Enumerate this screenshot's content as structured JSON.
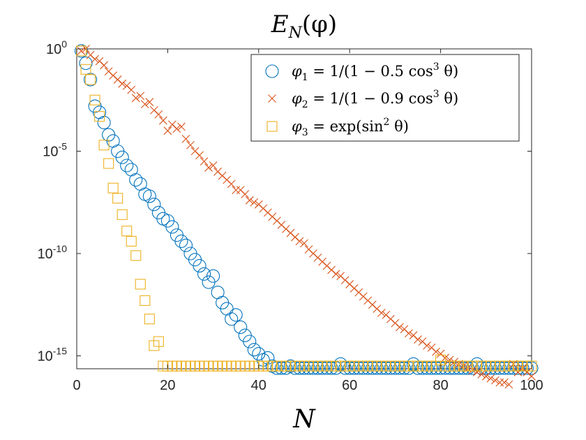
{
  "chart_data": {
    "type": "scatter",
    "title": "E_N(φ)",
    "title_main": "E",
    "title_sub": "N",
    "title_arg": "(φ)",
    "xlabel": "N",
    "ylabel": "",
    "xlim": [
      0,
      100
    ],
    "y_scale": "log",
    "ylim_exp": [
      -16,
      0
    ],
    "xticks": [
      0,
      20,
      40,
      60,
      80,
      100
    ],
    "xtick_labels": [
      "0",
      "20",
      "40",
      "60",
      "80",
      "100"
    ],
    "yticks_exp": [
      0,
      -5,
      -10,
      -15
    ],
    "ytick_base": "10",
    "ytick_exps": [
      "0",
      "-5",
      "-10",
      "-15"
    ],
    "legend_position": "top-right",
    "series": [
      {
        "name": "φ1 = 1/(1 − 0.5 cos³ θ)",
        "legend": {
          "sym": "φ",
          "sub": "1",
          "pre": " = 1/(1 − 0.5 cos",
          "sup": "3",
          "post": " θ)"
        },
        "marker": "circle",
        "color": "#0072BD",
        "x": [
          1,
          2,
          3,
          4,
          5,
          6,
          7,
          8,
          9,
          10,
          11,
          12,
          13,
          14,
          15,
          16,
          17,
          18,
          19,
          20,
          21,
          22,
          23,
          24,
          25,
          26,
          27,
          28,
          29,
          30,
          31,
          32,
          33,
          34,
          35,
          36,
          37,
          38,
          39,
          40,
          41,
          42,
          43,
          44,
          45,
          46,
          47,
          48,
          49,
          50,
          51,
          52,
          53,
          54,
          55,
          56,
          57,
          58,
          59,
          60,
          61,
          62,
          63,
          64,
          65,
          66,
          67,
          68,
          69,
          70,
          71,
          72,
          73,
          74,
          75,
          76,
          77,
          78,
          79,
          80,
          81,
          82,
          83,
          84,
          85,
          86,
          87,
          88,
          89,
          90,
          91,
          92,
          93,
          94,
          95,
          96,
          97,
          98,
          99,
          100
        ],
        "log10_y": [
          -0.1,
          -0.7,
          -1.5,
          -2.8,
          -3.1,
          -3.6,
          -4.2,
          -4.5,
          -5.0,
          -5.3,
          -5.7,
          -5.9,
          -6.4,
          -6.6,
          -7.1,
          -7.2,
          -7.6,
          -8.0,
          -8.3,
          -8.4,
          -8.7,
          -9.1,
          -9.4,
          -9.6,
          -10.0,
          -10.3,
          -10.6,
          -11.0,
          -11.4,
          -11.1,
          -11.9,
          -12.4,
          -12.7,
          -13.2,
          -13.0,
          -13.6,
          -14.0,
          -14.3,
          -14.7,
          -14.9,
          -15.2,
          -15.1,
          -15.5,
          -15.6,
          -15.6,
          -15.6,
          -15.5,
          -15.6,
          -15.6,
          -15.6,
          -15.6,
          -15.6,
          -15.6,
          -15.6,
          -15.6,
          -15.6,
          -15.6,
          -15.4,
          -15.6,
          -15.6,
          -15.6,
          -15.6,
          -15.6,
          -15.6,
          -15.6,
          -15.6,
          -15.6,
          -15.6,
          -15.6,
          -15.6,
          -15.6,
          -15.6,
          -15.6,
          -15.4,
          -15.6,
          -15.6,
          -15.6,
          -15.6,
          -15.6,
          -15.6,
          -15.6,
          -15.6,
          -15.6,
          -15.6,
          -15.6,
          -15.6,
          -15.6,
          -15.4,
          -15.6,
          -15.6,
          -15.6,
          -15.6,
          -15.6,
          -15.6,
          -15.6,
          -15.6,
          -15.6,
          -15.6,
          -15.6,
          -15.6
        ]
      },
      {
        "name": "φ2 = 1/(1 − 0.9 cos³ θ)",
        "legend": {
          "sym": "φ",
          "sub": "2",
          "pre": " = 1/(1 − 0.9 cos",
          "sup": "3",
          "post": " θ)"
        },
        "marker": "x",
        "color": "#D95319",
        "x": [
          1,
          2,
          3,
          4,
          5,
          6,
          7,
          8,
          9,
          10,
          11,
          12,
          13,
          14,
          15,
          16,
          17,
          18,
          19,
          20,
          21,
          22,
          23,
          24,
          25,
          26,
          27,
          28,
          29,
          30,
          31,
          32,
          33,
          34,
          35,
          36,
          37,
          38,
          39,
          40,
          41,
          42,
          43,
          44,
          45,
          46,
          47,
          48,
          49,
          50,
          51,
          52,
          53,
          54,
          55,
          56,
          57,
          58,
          59,
          60,
          61,
          62,
          63,
          64,
          65,
          66,
          67,
          68,
          69,
          70,
          71,
          72,
          73,
          74,
          75,
          76,
          77,
          78,
          79,
          80,
          81,
          82,
          83,
          84,
          85,
          86,
          87,
          88,
          89,
          90,
          91,
          92,
          93,
          94,
          95,
          96,
          97,
          98,
          99,
          100
        ],
        "log10_y": [
          -0.1,
          0.0,
          -0.3,
          -0.5,
          -0.6,
          -0.8,
          -1.1,
          -1.3,
          -1.5,
          -1.7,
          -1.8,
          -2.0,
          -2.4,
          -2.3,
          -2.7,
          -2.6,
          -3.0,
          -3.2,
          -3.5,
          -4.0,
          -3.7,
          -3.9,
          -3.8,
          -4.4,
          -4.7,
          -5.0,
          -5.2,
          -5.5,
          -5.8,
          -5.7,
          -6.0,
          -6.2,
          -6.4,
          -6.6,
          -6.9,
          -6.9,
          -7.1,
          -7.4,
          -7.5,
          -7.6,
          -7.8,
          -8.0,
          -8.2,
          -8.4,
          -8.6,
          -8.8,
          -9.0,
          -9.2,
          -9.4,
          -9.5,
          -9.8,
          -10.0,
          -10.2,
          -10.4,
          -10.6,
          -10.8,
          -11.0,
          -11.1,
          -11.3,
          -11.5,
          -11.7,
          -11.9,
          -12.1,
          -12.3,
          -12.5,
          -12.7,
          -12.9,
          -13.0,
          -13.2,
          -13.4,
          -13.6,
          -13.7,
          -13.9,
          -14.0,
          -14.2,
          -14.3,
          -14.5,
          -14.6,
          -14.8,
          -14.9,
          -15.1,
          -15.2,
          -15.3,
          -15.4,
          -15.5,
          -15.6,
          -15.7,
          -15.8,
          -15.9,
          -16.0,
          -16.1,
          -16.2,
          -16.3,
          -16.3,
          -16.4,
          -15.4,
          -15.8,
          -15.6,
          -15.8,
          -16.0
        ]
      },
      {
        "name": "φ3 = exp(sin² θ)",
        "legend": {
          "sym": "φ",
          "sub": "3",
          "pre": " = exp(sin",
          "sup": "2",
          "post": " θ)"
        },
        "marker": "square",
        "color": "#EDB120",
        "x": [
          1,
          2,
          3,
          4,
          5,
          6,
          7,
          8,
          9,
          10,
          11,
          12,
          13,
          14,
          15,
          16,
          17,
          18,
          19,
          20,
          21,
          22,
          23,
          24,
          25,
          26,
          27,
          28,
          29,
          30,
          31,
          32,
          33,
          34,
          35,
          36,
          37,
          38,
          39,
          40,
          41,
          42,
          43,
          44,
          45,
          46,
          47,
          48,
          49,
          50,
          51,
          52,
          53,
          54,
          55,
          56,
          57,
          58,
          59,
          60,
          61,
          62,
          63,
          64,
          65,
          66,
          67,
          68,
          69,
          70,
          71,
          72,
          73,
          74,
          75,
          76,
          77,
          78,
          79,
          80,
          81,
          82,
          83,
          84,
          85,
          86,
          87,
          88,
          89,
          90,
          91,
          92,
          93,
          94,
          95,
          96,
          97,
          98,
          99,
          100
        ],
        "log10_y": [
          -0.1,
          -1.0,
          -1.5,
          -2.5,
          -3.3,
          -4.7,
          -5.6,
          -6.8,
          -7.3,
          -8.1,
          -8.9,
          -9.4,
          -10.1,
          -11.5,
          -12.3,
          -13.2,
          -14.5,
          -14.3,
          -15.5,
          -15.5,
          -15.5,
          -15.5,
          -15.5,
          -15.5,
          -15.5,
          -15.5,
          -15.5,
          -15.5,
          -15.5,
          -15.5,
          -15.5,
          -15.5,
          -15.5,
          -15.5,
          -15.5,
          -15.5,
          -15.5,
          -15.5,
          -15.5,
          -15.5,
          -15.5,
          -15.5,
          -15.5,
          -15.5,
          -15.5,
          -15.5,
          -15.5,
          -15.5,
          -15.5,
          -15.5,
          -15.5,
          -15.5,
          -15.5,
          -15.5,
          -15.5,
          -15.5,
          -15.5,
          -15.5,
          -15.5,
          -15.5,
          -15.5,
          -15.5,
          -15.5,
          -15.5,
          -15.5,
          -15.5,
          -15.5,
          -15.5,
          -15.5,
          -15.5,
          -15.5,
          -15.5,
          -15.5,
          -15.5,
          -15.5,
          -15.5,
          -15.5,
          -15.5,
          -15.5,
          -15.2,
          -15.5,
          -15.5,
          -15.5,
          -15.5,
          -15.5,
          -15.5,
          -15.5,
          -15.5,
          -15.5,
          -15.5,
          -15.5,
          -15.5,
          -15.5,
          -15.5,
          -15.5,
          -15.5,
          -15.5,
          -15.5,
          -15.5,
          -15.5
        ]
      }
    ]
  }
}
